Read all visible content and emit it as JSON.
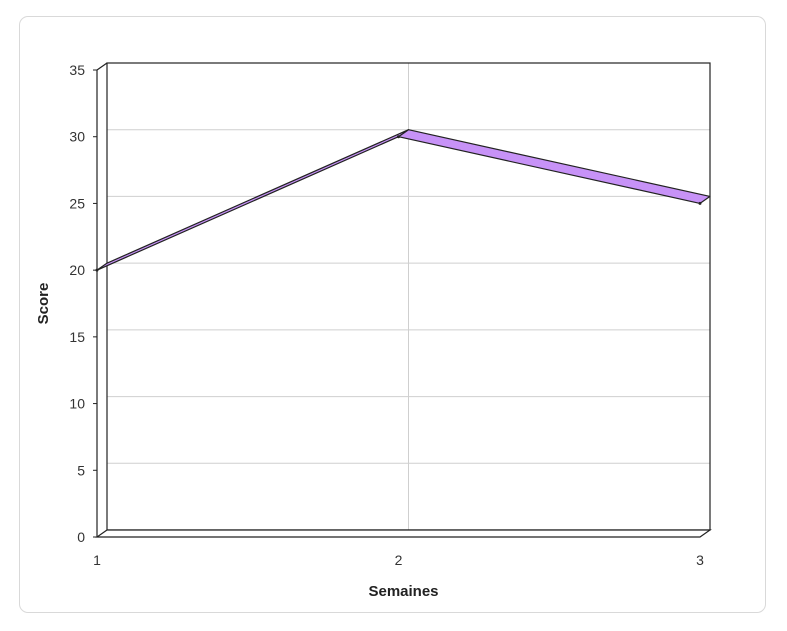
{
  "chart_data": {
    "type": "line",
    "style": "3d-ribbon",
    "x": [
      1,
      2,
      3
    ],
    "x_tick_labels": [
      "1",
      "2",
      "3"
    ],
    "series": [
      {
        "values": [
          20,
          30,
          25
        ],
        "color": "#c792f7",
        "edge_color": "#222222"
      }
    ],
    "xlabel": "Semaines",
    "ylabel": "Score",
    "ylim": [
      0,
      35
    ],
    "y_ticks": [
      "0",
      "5",
      "10",
      "15",
      "20",
      "25",
      "30",
      "35"
    ],
    "grid": true,
    "legend": "none"
  }
}
